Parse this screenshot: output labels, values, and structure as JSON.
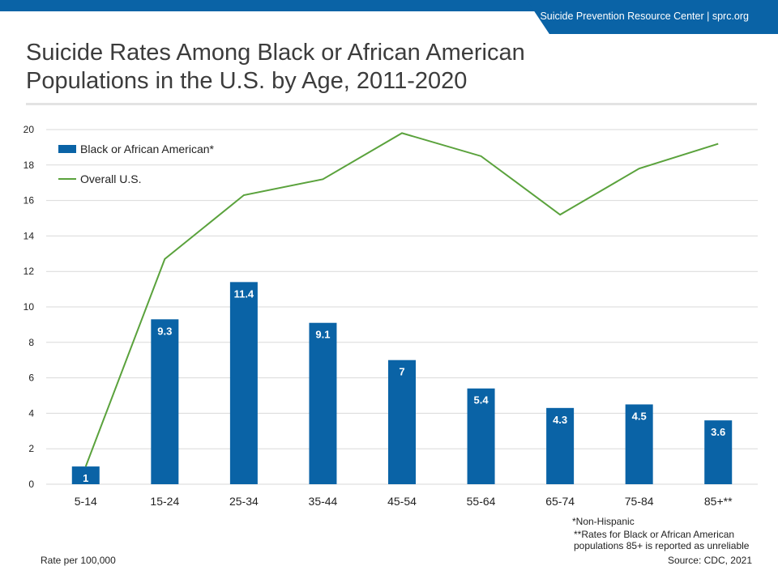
{
  "header": {
    "banner_text": "Suicide Prevention Resource Center  |  sprc.org"
  },
  "title": "Suicide Rates Among Black or African American Populations in the U.S. by Age, 2011-2020",
  "footer": {
    "rate_note": "Rate per 100,000",
    "source": "Source: CDC, 2021",
    "note_non_hispanic": "*Non-Hispanic",
    "note_unreliable": "**Rates for Black or African American populations 85+ is reported as unreliable"
  },
  "colors": {
    "brand_blue": "#0a63a6",
    "bar": "#0a63a6",
    "line": "#5aa23c"
  },
  "chart_data": {
    "type": "bar",
    "categories": [
      "5-14",
      "15-24",
      "25-34",
      "35-44",
      "45-54",
      "55-64",
      "65-74",
      "75-84",
      "85+**"
    ],
    "series": [
      {
        "name": "Black or African American*",
        "type": "bar",
        "values": [
          1,
          9.3,
          11.4,
          9.1,
          7,
          5.4,
          4.3,
          4.5,
          3.6
        ],
        "data_labels": [
          "1",
          "9.3",
          "11.4",
          "9.1",
          "7",
          "5.4",
          "4.3",
          "4.5",
          "3.6"
        ]
      },
      {
        "name": "Overall U.S.",
        "type": "line",
        "values": [
          1,
          12.7,
          16.3,
          17.2,
          19.8,
          18.5,
          15.2,
          17.8,
          19.2
        ]
      }
    ],
    "y_ticks": [
      "0",
      "2",
      "4",
      "6",
      "8",
      "10",
      "12",
      "14",
      "16",
      "18",
      "20"
    ],
    "ylim": [
      0,
      20
    ],
    "grid": true,
    "legend_position": "top-left"
  }
}
